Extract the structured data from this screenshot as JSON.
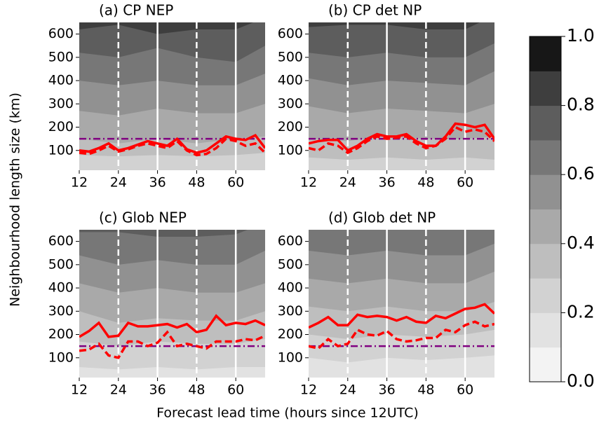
{
  "ylabel": "Neighbourhood length size (km)",
  "xlabel": "Forecast lead time (hours since 12UTC)",
  "chart_data": [
    {
      "type": "contour",
      "title": "(a) CP NEP",
      "xlim": [
        12,
        69
      ],
      "ylim": [
        15,
        650
      ],
      "xticks": [
        12,
        24,
        36,
        48,
        60
      ],
      "yticks": [
        100,
        200,
        300,
        400,
        500,
        600
      ],
      "vlines": [
        {
          "x": 24,
          "style": "dashed"
        },
        {
          "x": 36,
          "style": "solid"
        },
        {
          "x": 48,
          "style": "dashed"
        },
        {
          "x": 60,
          "style": "solid"
        }
      ],
      "hline": {
        "value": 150,
        "color": "#800080"
      },
      "contour_x": [
        12,
        24,
        36,
        48,
        60,
        69
      ],
      "contours": [
        {
          "level": 0.3,
          "values": [
            80,
            75,
            80,
            75,
            80,
            90
          ]
        },
        {
          "level": 0.4,
          "values": [
            150,
            130,
            150,
            130,
            150,
            160
          ]
        },
        {
          "level": 0.5,
          "values": [
            270,
            250,
            280,
            260,
            260,
            300
          ]
        },
        {
          "level": 0.6,
          "values": [
            400,
            380,
            400,
            380,
            380,
            430
          ]
        },
        {
          "level": 0.7,
          "values": [
            520,
            500,
            540,
            500,
            480,
            550
          ]
        },
        {
          "level": 0.8,
          "values": [
            620,
            640,
            600,
            620,
            620,
            670
          ]
        }
      ],
      "x": [
        12,
        15,
        18,
        21,
        24,
        27,
        30,
        33,
        36,
        39,
        42,
        45,
        48,
        51,
        54,
        57,
        60,
        63,
        66,
        69
      ],
      "series": [
        {
          "color": "#ff0000",
          "style": "solid",
          "values": [
            100,
            95,
            110,
            130,
            100,
            110,
            125,
            140,
            130,
            120,
            150,
            105,
            90,
            100,
            130,
            160,
            150,
            145,
            165,
            110
          ]
        },
        {
          "color": "#ff0000",
          "style": "dashed",
          "values": [
            90,
            85,
            100,
            120,
            95,
            105,
            120,
            130,
            120,
            110,
            140,
            100,
            80,
            85,
            110,
            150,
            140,
            120,
            130,
            90
          ]
        }
      ]
    },
    {
      "type": "contour",
      "title": "(b) CP det NP",
      "xlim": [
        12,
        69
      ],
      "ylim": [
        15,
        650
      ],
      "xticks": [
        12,
        24,
        36,
        48,
        60
      ],
      "yticks": [
        100,
        200,
        300,
        400,
        500,
        600
      ],
      "vlines": [
        {
          "x": 24,
          "style": "dashed"
        },
        {
          "x": 36,
          "style": "solid"
        },
        {
          "x": 48,
          "style": "dashed"
        },
        {
          "x": 60,
          "style": "solid"
        }
      ],
      "hline": {
        "value": 150,
        "color": "#800080"
      },
      "contour_x": [
        12,
        24,
        36,
        48,
        60,
        69
      ],
      "contours": [
        {
          "level": 0.3,
          "values": [
            70,
            60,
            70,
            60,
            70,
            60
          ]
        },
        {
          "level": 0.4,
          "values": [
            150,
            140,
            160,
            150,
            150,
            160
          ]
        },
        {
          "level": 0.5,
          "values": [
            290,
            260,
            280,
            270,
            260,
            300
          ]
        },
        {
          "level": 0.6,
          "values": [
            410,
            380,
            400,
            390,
            380,
            440
          ]
        },
        {
          "level": 0.7,
          "values": [
            520,
            500,
            520,
            500,
            500,
            560
          ]
        },
        {
          "level": 0.8,
          "values": [
            630,
            640,
            640,
            620,
            620,
            680
          ]
        }
      ],
      "x": [
        12,
        15,
        18,
        21,
        24,
        27,
        30,
        33,
        36,
        39,
        42,
        45,
        48,
        51,
        54,
        57,
        60,
        63,
        66,
        69
      ],
      "series": [
        {
          "color": "#ff0000",
          "style": "solid",
          "values": [
            130,
            140,
            145,
            145,
            100,
            120,
            150,
            170,
            160,
            160,
            170,
            140,
            120,
            120,
            160,
            215,
            210,
            200,
            210,
            150
          ]
        },
        {
          "color": "#ff0000",
          "style": "dashed",
          "values": [
            110,
            100,
            130,
            120,
            90,
            110,
            140,
            160,
            150,
            155,
            160,
            130,
            110,
            120,
            150,
            200,
            180,
            190,
            180,
            140
          ]
        }
      ]
    },
    {
      "type": "contour",
      "title": "(c) Glob NEP",
      "xlim": [
        12,
        69
      ],
      "ylim": [
        15,
        650
      ],
      "xticks": [
        12,
        24,
        36,
        48,
        60
      ],
      "yticks": [
        100,
        200,
        300,
        400,
        500,
        600
      ],
      "vlines": [
        {
          "x": 24,
          "style": "dashed"
        },
        {
          "x": 36,
          "style": "solid"
        },
        {
          "x": 48,
          "style": "dashed"
        },
        {
          "x": 60,
          "style": "solid"
        }
      ],
      "hline": {
        "value": 150,
        "color": "#800080"
      },
      "contour_x": [
        12,
        24,
        36,
        48,
        60,
        69
      ],
      "contours": [
        {
          "level": 0.2,
          "values": [
            60,
            50,
            60,
            50,
            60,
            60
          ]
        },
        {
          "level": 0.3,
          "values": [
            170,
            150,
            170,
            160,
            160,
            180
          ]
        },
        {
          "level": 0.4,
          "values": [
            300,
            250,
            270,
            260,
            260,
            300
          ]
        },
        {
          "level": 0.5,
          "values": [
            420,
            380,
            400,
            380,
            380,
            420
          ]
        },
        {
          "level": 0.6,
          "values": [
            540,
            500,
            520,
            500,
            500,
            560
          ]
        },
        {
          "level": 0.7,
          "values": [
            640,
            640,
            620,
            620,
            630,
            680
          ]
        }
      ],
      "x": [
        12,
        15,
        18,
        21,
        24,
        27,
        30,
        33,
        36,
        39,
        42,
        45,
        48,
        51,
        54,
        57,
        60,
        63,
        66,
        69
      ],
      "series": [
        {
          "color": "#ff0000",
          "style": "solid",
          "values": [
            190,
            215,
            250,
            190,
            195,
            250,
            235,
            235,
            240,
            245,
            230,
            245,
            210,
            220,
            280,
            240,
            250,
            245,
            260,
            240
          ]
        },
        {
          "color": "#ff0000",
          "style": "dashed",
          "values": [
            130,
            135,
            160,
            110,
            100,
            170,
            170,
            150,
            165,
            210,
            150,
            160,
            150,
            140,
            170,
            170,
            170,
            180,
            175,
            195
          ]
        }
      ]
    },
    {
      "type": "contour",
      "title": "(d) Glob det NP",
      "xlim": [
        12,
        69
      ],
      "ylim": [
        15,
        650
      ],
      "xticks": [
        12,
        24,
        36,
        48,
        60
      ],
      "yticks": [
        100,
        200,
        300,
        400,
        500,
        600
      ],
      "vlines": [
        {
          "x": 24,
          "style": "dashed"
        },
        {
          "x": 36,
          "style": "solid"
        },
        {
          "x": 48,
          "style": "dashed"
        },
        {
          "x": 60,
          "style": "solid"
        }
      ],
      "hline": {
        "value": 150,
        "color": "#800080"
      },
      "contour_x": [
        12,
        24,
        36,
        48,
        60,
        69
      ],
      "contours": [
        {
          "level": 0.2,
          "values": [
            100,
            80,
            100,
            90,
            100,
            110
          ]
        },
        {
          "level": 0.3,
          "values": [
            200,
            180,
            200,
            190,
            200,
            220
          ]
        },
        {
          "level": 0.4,
          "values": [
            320,
            300,
            320,
            300,
            300,
            340
          ]
        },
        {
          "level": 0.5,
          "values": [
            440,
            420,
            440,
            420,
            420,
            470
          ]
        },
        {
          "level": 0.6,
          "values": [
            560,
            540,
            560,
            540,
            540,
            590
          ]
        },
        {
          "level": 0.7,
          "values": [
            660,
            660,
            660,
            650,
            650,
            680
          ]
        }
      ],
      "x": [
        12,
        15,
        18,
        21,
        24,
        27,
        30,
        33,
        36,
        39,
        42,
        45,
        48,
        51,
        54,
        57,
        60,
        63,
        66,
        69
      ],
      "series": [
        {
          "color": "#ff0000",
          "style": "solid",
          "values": [
            230,
            250,
            275,
            240,
            240,
            285,
            275,
            280,
            275,
            260,
            275,
            255,
            250,
            280,
            270,
            290,
            310,
            315,
            330,
            290
          ]
        },
        {
          "color": "#ff0000",
          "style": "dashed",
          "values": [
            150,
            140,
            180,
            150,
            160,
            220,
            200,
            195,
            215,
            180,
            170,
            175,
            185,
            185,
            220,
            210,
            240,
            255,
            235,
            245
          ]
        }
      ]
    },
    {
      "type": "colorbar",
      "levels": [
        0,
        0.1,
        0.2,
        0.3,
        0.4,
        0.5,
        0.6,
        0.7,
        0.8,
        0.9,
        1
      ],
      "colors": [
        "#f3f3f3",
        "#e2e2e2",
        "#d2d2d2",
        "#bebebe",
        "#a9a9a9",
        "#919191",
        "#777777",
        "#5d5d5d",
        "#3e3e3e",
        "#171717"
      ],
      "ylim": [
        0,
        1
      ],
      "yticks": [
        {
          "value": 0,
          "label": "0.0"
        },
        0.2,
        0.4,
        0.6,
        0.8,
        {
          "value": 1,
          "label": "1.0"
        }
      ]
    }
  ]
}
